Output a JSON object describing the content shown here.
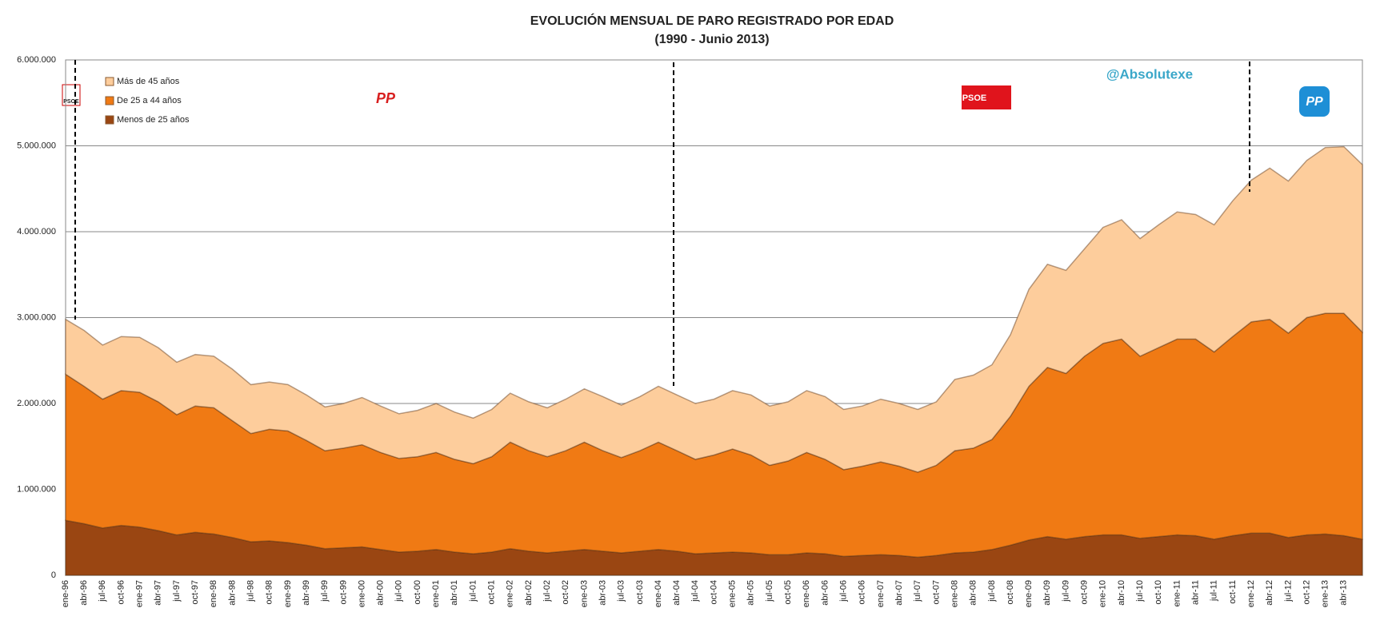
{
  "chart_data": {
    "type": "stacked_area",
    "title": "EVOLUCIÓN MENSUAL DE PARO REGISTRADO POR EDAD",
    "subtitle": "(1990 - Junio 2013)",
    "watermark": "@Absolutexe",
    "logos": [
      "PSOE",
      "PP",
      "PSOE",
      "PP"
    ],
    "categories": [
      "ene-96",
      "abr-96",
      "jul-96",
      "oct-96",
      "ene-97",
      "abr-97",
      "jul-97",
      "oct-97",
      "ene-98",
      "abr-98",
      "jul-98",
      "oct-98",
      "ene-99",
      "abr-99",
      "jul-99",
      "oct-99",
      "ene-00",
      "abr-00",
      "jul-00",
      "oct-00",
      "ene-01",
      "abr-01",
      "jul-01",
      "oct-01",
      "ene-02",
      "abr-02",
      "jul-02",
      "oct-02",
      "ene-03",
      "abr-03",
      "jul-03",
      "oct-03",
      "ene-04",
      "abr-04",
      "jul-04",
      "oct-04",
      "ene-05",
      "abr-05",
      "jul-05",
      "oct-05",
      "ene-06",
      "abr-06",
      "jul-06",
      "oct-06",
      "ene-07",
      "abr-07",
      "jul-07",
      "oct-07",
      "ene-08",
      "abr-08",
      "jul-08",
      "oct-08",
      "ene-09",
      "abr-09",
      "jul-09",
      "oct-09",
      "ene-10",
      "abr-10",
      "jul-10",
      "oct-10",
      "ene-11",
      "abr-11",
      "jul-11",
      "oct-11",
      "ene-12",
      "abr-12",
      "jul-12",
      "oct-12",
      "ene-13",
      "abr-13",
      null
    ],
    "series": [
      {
        "name": "Menos de 25 años",
        "color": "#9a4612",
        "values": [
          640000,
          600000,
          550000,
          580000,
          560000,
          520000,
          470000,
          500000,
          480000,
          440000,
          390000,
          400000,
          380000,
          350000,
          310000,
          320000,
          330000,
          300000,
          270000,
          280000,
          300000,
          270000,
          250000,
          270000,
          310000,
          280000,
          260000,
          280000,
          300000,
          280000,
          260000,
          280000,
          300000,
          280000,
          250000,
          260000,
          270000,
          260000,
          240000,
          240000,
          260000,
          250000,
          220000,
          230000,
          240000,
          230000,
          210000,
          230000,
          260000,
          270000,
          300000,
          350000,
          410000,
          450000,
          420000,
          450000,
          470000,
          470000,
          430000,
          450000,
          470000,
          460000,
          420000,
          460000,
          490000,
          490000,
          440000,
          470000,
          480000,
          460000,
          420000
        ]
      },
      {
        "name": "De 25 a 44 años",
        "color": "#f07a14",
        "values": [
          1700000,
          1600000,
          1500000,
          1570000,
          1570000,
          1500000,
          1400000,
          1470000,
          1470000,
          1360000,
          1260000,
          1300000,
          1300000,
          1220000,
          1140000,
          1160000,
          1190000,
          1130000,
          1090000,
          1100000,
          1130000,
          1080000,
          1050000,
          1110000,
          1240000,
          1170000,
          1120000,
          1170000,
          1250000,
          1170000,
          1110000,
          1170000,
          1250000,
          1170000,
          1100000,
          1140000,
          1200000,
          1140000,
          1040000,
          1090000,
          1170000,
          1100000,
          1010000,
          1040000,
          1080000,
          1040000,
          990000,
          1050000,
          1190000,
          1210000,
          1280000,
          1500000,
          1790000,
          1970000,
          1930000,
          2100000,
          2230000,
          2280000,
          2120000,
          2200000,
          2280000,
          2290000,
          2180000,
          2320000,
          2460000,
          2490000,
          2380000,
          2530000,
          2570000,
          2590000,
          2410000
        ]
      },
      {
        "name": "Más de 45 años",
        "color": "#fdcd9c",
        "values": [
          640000,
          650000,
          630000,
          630000,
          640000,
          630000,
          610000,
          600000,
          600000,
          600000,
          570000,
          550000,
          540000,
          530000,
          510000,
          520000,
          550000,
          540000,
          520000,
          540000,
          570000,
          550000,
          530000,
          550000,
          570000,
          570000,
          570000,
          600000,
          620000,
          630000,
          610000,
          630000,
          650000,
          650000,
          650000,
          650000,
          680000,
          700000,
          690000,
          690000,
          720000,
          730000,
          700000,
          700000,
          730000,
          730000,
          730000,
          740000,
          830000,
          850000,
          870000,
          950000,
          1130000,
          1200000,
          1200000,
          1250000,
          1350000,
          1390000,
          1370000,
          1430000,
          1480000,
          1450000,
          1480000,
          1580000,
          1650000,
          1760000,
          1770000,
          1830000,
          1930000,
          1940000,
          1950000
        ]
      }
    ],
    "ylim": [
      0,
      6000000
    ],
    "yticks": [
      0,
      {
        "value": 1000000,
        "label": "1.000.000"
      },
      {
        "value": 2000000,
        "label": "2.000.000"
      },
      {
        "value": 3000000,
        "label": "3.000.000"
      },
      {
        "value": 4000000,
        "label": "4.000.000"
      },
      {
        "value": 5000000,
        "label": "5.000.000"
      },
      {
        "value": 6000000,
        "label": "6.000.000"
      }
    ],
    "grid": true
  }
}
